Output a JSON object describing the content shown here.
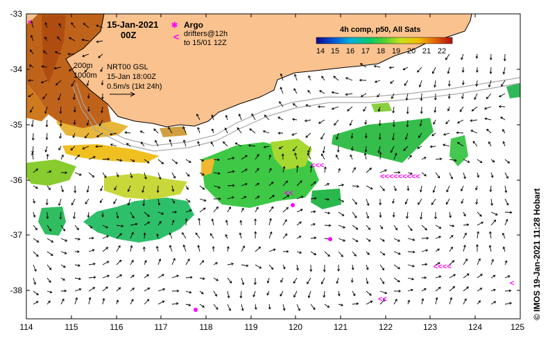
{
  "map": {
    "date_line1": "15-Jan-2021",
    "date_line2": "00Z",
    "isobath_200": "200m",
    "isobath_1000": "1000m",
    "current_source": "NRT00 GSL",
    "current_time": "15-Jan 18:00Z",
    "current_scale": "0.5m/s (1kt 24h)",
    "argo_label": "Argo",
    "drifters_line1": "drifters@12h",
    "drifters_line2": "to 15/01 12Z",
    "drifter_symbol": "<",
    "colorbar_title": "4h comp, p50, All Sats",
    "colorbar_ticks": [
      "14",
      "15",
      "16",
      "17",
      "18",
      "19",
      "20",
      "21",
      "22"
    ],
    "credit": "© IMOS 19-Jan-2021 11:28 Hobart",
    "lon_ticks": [
      "114",
      "115",
      "116",
      "117",
      "118",
      "119",
      "120",
      "121",
      "122",
      "123",
      "124",
      "125"
    ],
    "lat_ticks": [
      "-33",
      "-34",
      "-35",
      "-36",
      "-37",
      "-38"
    ],
    "colors": {
      "land": "#f9c28f",
      "coast": "#000000",
      "drifter": "#ff00ff",
      "isobath": "#a8a8a8"
    }
  }
}
